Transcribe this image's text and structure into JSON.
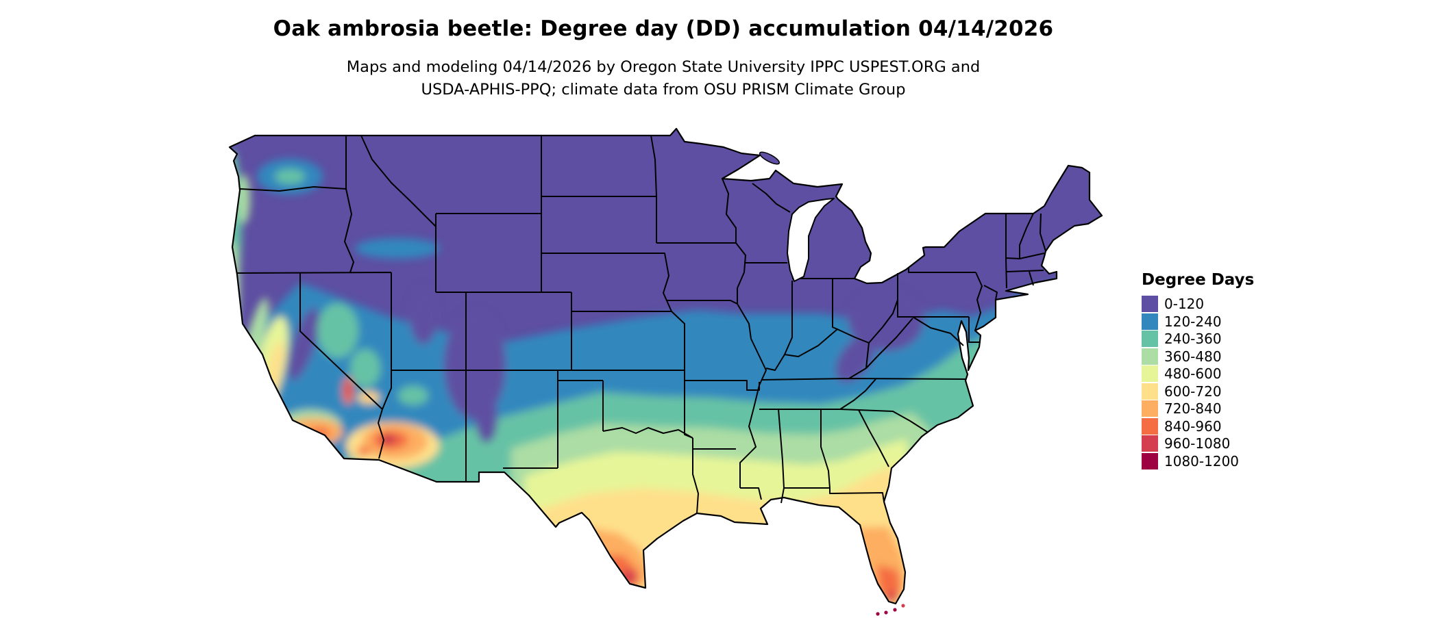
{
  "title": "Oak ambrosia beetle: Degree day (DD) accumulation 04/14/2026",
  "subtitle": {
    "line1": "Maps and modeling 04/14/2026 by Oregon State University IPPC USPEST.ORG and",
    "line2": "USDA-APHIS-PPQ; climate data from OSU PRISM Climate Group"
  },
  "map": {
    "area": "Contiguous United States choropleth of degree-day accumulation"
  },
  "legend": {
    "title": "Degree Days",
    "items": [
      {
        "label": "0-120",
        "color": "#5e4fa2"
      },
      {
        "label": "120-240",
        "color": "#3288bd"
      },
      {
        "label": "240-360",
        "color": "#66c2a5"
      },
      {
        "label": "360-480",
        "color": "#abdda4"
      },
      {
        "label": "480-600",
        "color": "#e6f598"
      },
      {
        "label": "600-720",
        "color": "#fee08b"
      },
      {
        "label": "720-840",
        "color": "#fdae61"
      },
      {
        "label": "840-960",
        "color": "#f46d43"
      },
      {
        "label": "960-1080",
        "color": "#d53e4f"
      },
      {
        "label": "1080-1200",
        "color": "#9e0142"
      }
    ]
  }
}
